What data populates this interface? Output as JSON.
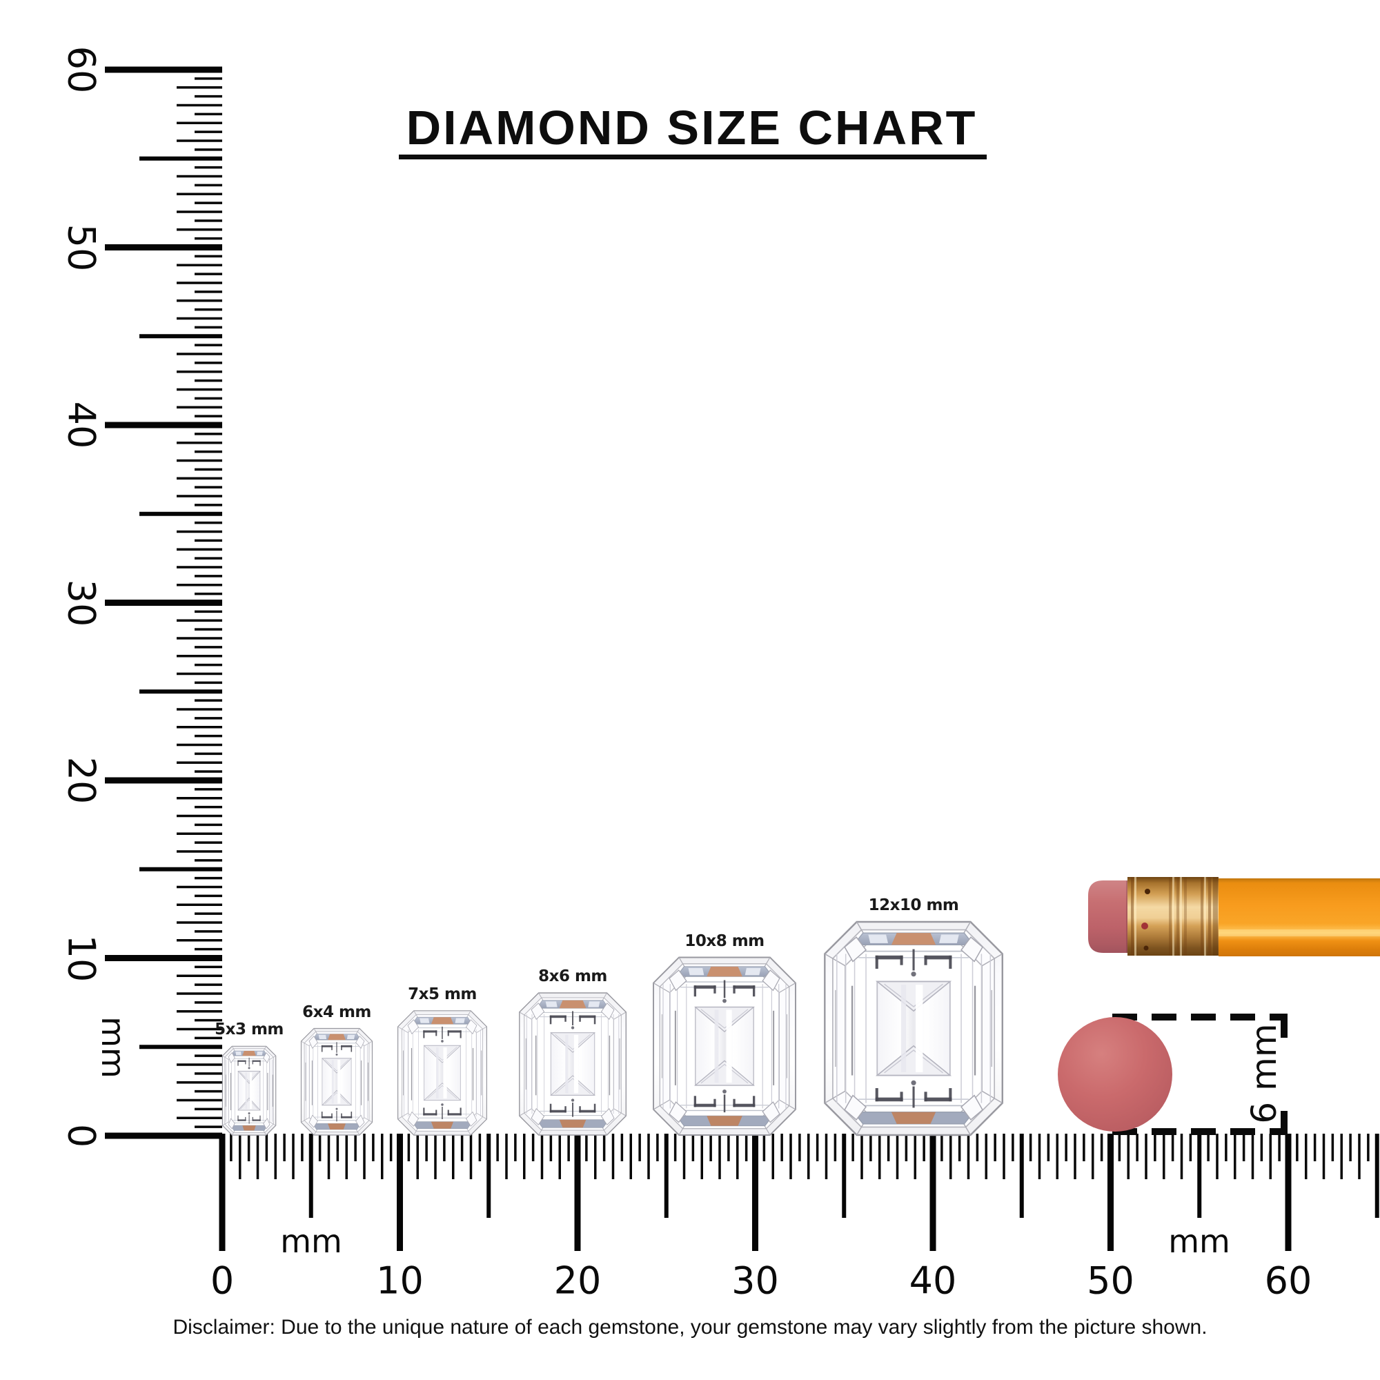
{
  "title": "DIAMOND SIZE CHART",
  "rulers": {
    "unit": "mm",
    "vertical": {
      "tick_numbers": [
        "60",
        "50",
        "40",
        "30",
        "20",
        "10",
        "0"
      ]
    },
    "horizontal": {
      "tick_numbers": [
        "0",
        "10",
        "20",
        "30",
        "40",
        "50",
        "60"
      ]
    }
  },
  "diamonds": [
    {
      "label": "5x3 mm",
      "height_mm": 5,
      "width_mm": 3
    },
    {
      "label": "6x4 mm",
      "height_mm": 6,
      "width_mm": 4
    },
    {
      "label": "7x5 mm",
      "height_mm": 7,
      "width_mm": 5
    },
    {
      "label": "8x6 mm",
      "height_mm": 8,
      "width_mm": 6
    },
    {
      "label": "10x8 mm",
      "height_mm": 10,
      "width_mm": 8
    },
    {
      "label": "12x10 mm",
      "height_mm": 12,
      "width_mm": 10
    }
  ],
  "eraser_reference": {
    "label": "6 mm",
    "diameter_mm": 6
  },
  "disclaimer": "Disclaimer: Due to the unique nature of each gemstone, your gemstone may vary slightly from the picture shown.",
  "colors": {
    "ink": "#0a0a0a",
    "diamond_outline": "#98989f",
    "diamond_slate_band": "#aeb6c8",
    "diamond_peach_accent": "#c9906f",
    "pencil_body": "#f89d1f",
    "pencil_ferrule": "#d8a355",
    "pencil_eraser": "#c76a6e",
    "eraser_disc": "#ca686b"
  }
}
